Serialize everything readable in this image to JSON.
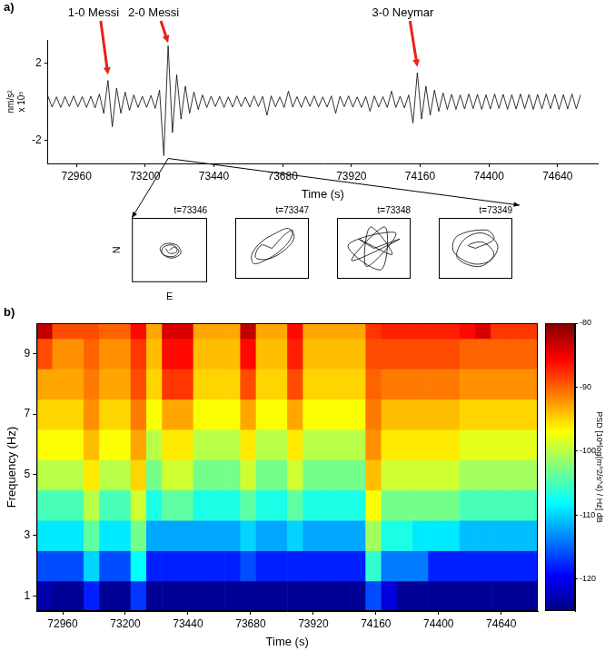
{
  "chart_data": [
    {
      "type": "line",
      "title": "a)",
      "xlabel": "Time (s)",
      "ylabel": [
        "nm/s²",
        "x 10⁵"
      ],
      "color": "#000000",
      "xlim": [
        72860,
        74780
      ],
      "xticks": [
        72960,
        73200,
        73440,
        73680,
        73920,
        74160,
        74400,
        74640
      ],
      "ylim": [
        -3.2,
        3.2
      ],
      "yticks": [
        -2,
        2
      ],
      "x": [
        72860,
        72875,
        72890,
        72905,
        72920,
        72935,
        72950,
        72965,
        72980,
        72995,
        73010,
        73025,
        73040,
        73055,
        73070,
        73085,
        73100,
        73115,
        73130,
        73145,
        73160,
        73175,
        73190,
        73205,
        73220,
        73235,
        73250,
        73265,
        73280,
        73295,
        73310,
        73325,
        73340,
        73355,
        73370,
        73385,
        73400,
        73415,
        73430,
        73445,
        73460,
        73475,
        73490,
        73505,
        73520,
        73535,
        73550,
        73565,
        73580,
        73595,
        73610,
        73625,
        73640,
        73655,
        73670,
        73685,
        73700,
        73715,
        73730,
        73745,
        73760,
        73775,
        73790,
        73805,
        73820,
        73835,
        73850,
        73865,
        73880,
        73895,
        73910,
        73925,
        73940,
        73955,
        73970,
        73985,
        74000,
        74015,
        74030,
        74045,
        74060,
        74075,
        74090,
        74105,
        74120,
        74135,
        74150,
        74165,
        74180,
        74195,
        74210,
        74225,
        74240,
        74255,
        74270,
        74285,
        74300,
        74315,
        74330,
        74345,
        74360,
        74375,
        74390,
        74405,
        74420,
        74435,
        74450,
        74465,
        74480,
        74495,
        74510,
        74525,
        74540,
        74555,
        74570,
        74585,
        74600,
        74615,
        74630,
        74645,
        74660,
        74675,
        74690,
        74705,
        74720
      ],
      "values": [
        0.3,
        -0.28,
        0.25,
        -0.3,
        0.27,
        -0.25,
        0.3,
        -0.27,
        0.26,
        -0.3,
        0.28,
        -0.32,
        0.4,
        -0.6,
        1.1,
        -1.3,
        0.7,
        -0.6,
        0.5,
        -0.45,
        0.35,
        -0.3,
        0.28,
        -0.3,
        0.32,
        -0.35,
        0.6,
        -2.8,
        2.9,
        -1.6,
        1.4,
        -0.9,
        0.8,
        -0.6,
        0.5,
        -0.4,
        0.35,
        -0.3,
        0.28,
        -0.25,
        0.27,
        -0.3,
        0.25,
        -0.28,
        0.3,
        -0.26,
        0.24,
        -0.28,
        0.3,
        -0.25,
        0.27,
        -0.7,
        0.3,
        -0.27,
        0.25,
        -0.3,
        0.55,
        -0.28,
        0.26,
        -0.3,
        0.28,
        -0.25,
        0.3,
        -0.27,
        0.25,
        -0.28,
        0.3,
        -0.6,
        0.28,
        -0.26,
        0.3,
        -0.28,
        0.25,
        -0.3,
        0.27,
        -0.5,
        0.3,
        -0.28,
        0.26,
        -0.3,
        0.55,
        -0.3,
        0.28,
        -0.32,
        0.35,
        -1.1,
        1.5,
        -0.9,
        0.8,
        -0.7,
        0.6,
        -0.5,
        0.45,
        -0.4,
        0.38,
        -0.4,
        0.35,
        -0.38,
        0.4,
        -0.36,
        0.38,
        -0.4,
        0.36,
        -0.38,
        0.4,
        -0.35,
        0.38,
        -0.4,
        0.36,
        -0.38,
        0.4,
        -0.36,
        0.38,
        -0.4,
        0.37,
        -0.38,
        0.4,
        -0.36,
        0.38,
        -0.4,
        0.36,
        -0.38,
        0.4,
        -0.37,
        0.35
      ],
      "annotations": [
        {
          "text": "1-0 Messi",
          "x": 73070,
          "y": 1.4,
          "color": "#e8221b"
        },
        {
          "text": "2-0 Messi",
          "x": 73280,
          "y": 3.05,
          "color": "#e8221b"
        },
        {
          "text": "3-0 Neymar",
          "x": 74150,
          "y": 1.8,
          "color": "#e8221b"
        }
      ]
    },
    {
      "type": "line",
      "title": "t=73346",
      "xlabel": "E",
      "ylabel": "N",
      "color": "#000000",
      "tick_labels": false,
      "xlim": [
        -1,
        1
      ],
      "ylim": [
        -1,
        1
      ],
      "x": [
        0,
        0.15,
        0.25,
        0.1,
        -0.15,
        -0.25,
        -0.1,
        0.2,
        0.3,
        0.05,
        -0.2,
        -0.15,
        0.1,
        0.2,
        0,
        -0.1
      ],
      "values": [
        0,
        0.1,
        -0.05,
        -0.2,
        -0.15,
        0.05,
        0.2,
        0.15,
        -0.1,
        -0.25,
        -0.1,
        0.1,
        0.15,
        -0.05,
        -0.1,
        0.05
      ]
    },
    {
      "type": "line",
      "title": "t=73347",
      "color": "#000000",
      "tick_labels": false,
      "xlim": [
        -1,
        1
      ],
      "ylim": [
        -1,
        1
      ],
      "x": [
        0,
        0.3,
        0.55,
        0.5,
        0.2,
        -0.2,
        -0.5,
        -0.55,
        -0.3,
        0.1,
        0.45,
        0.6,
        0.35,
        -0.1,
        -0.45,
        -0.3,
        0
      ],
      "values": [
        0,
        0.4,
        0.6,
        0.3,
        -0.1,
        -0.4,
        -0.5,
        -0.2,
        0.2,
        0.5,
        0.65,
        0.35,
        -0.05,
        -0.35,
        -0.3,
        0.1,
        0
      ]
    },
    {
      "type": "line",
      "title": "t=73348",
      "color": "#000000",
      "tick_labels": false,
      "xlim": [
        -1,
        1
      ],
      "ylim": [
        -1,
        1
      ],
      "x": [
        0,
        0.7,
        -0.6,
        0.3,
        0.2,
        -0.7,
        0.6,
        -0.2,
        -0.1,
        0.5,
        -0.4,
        0
      ],
      "values": [
        0,
        0.3,
        -0.4,
        0.7,
        -0.7,
        0.1,
        0.5,
        -0.6,
        0.7,
        -0.2,
        0.3,
        0
      ]
    },
    {
      "type": "line",
      "title": "t=73349",
      "color": "#000000",
      "tick_labels": false,
      "xlim": [
        -1,
        1
      ],
      "ylim": [
        -1,
        1
      ],
      "x": [
        0,
        0.5,
        0.3,
        -0.5,
        -0.6,
        -0.1,
        0.4,
        0.6,
        0.2,
        -0.3,
        -0.5,
        0.1,
        0.5,
        0.2,
        -0.2,
        0
      ],
      "values": [
        0,
        0.3,
        0.6,
        0.4,
        -0.1,
        -0.5,
        -0.4,
        0.1,
        0.5,
        0.3,
        -0.3,
        -0.6,
        -0.2,
        0.2,
        0.1,
        0
      ]
    },
    {
      "type": "heatmap",
      "title": "b)",
      "xlabel": "Time (s)",
      "ylabel": "Frequency (Hz)",
      "xlim": [
        72860,
        74780
      ],
      "xticks": [
        72960,
        73200,
        73440,
        73680,
        73920,
        74160,
        74400,
        74640
      ],
      "ylim": [
        0.5,
        10
      ],
      "yticks": [
        1,
        3,
        5,
        7,
        9
      ],
      "x_edges": [
        72860,
        72920,
        72980,
        73040,
        73100,
        73160,
        73220,
        73280,
        73340,
        73400,
        73460,
        73520,
        73580,
        73640,
        73700,
        73760,
        73820,
        73880,
        73940,
        74000,
        74060,
        74120,
        74180,
        74240,
        74300,
        74360,
        74420,
        74480,
        74540,
        74600,
        74660,
        74720,
        74780
      ],
      "y_edges": [
        0.5,
        1.5,
        2.5,
        3.5,
        4.5,
        5.5,
        6.5,
        7.5,
        8.5,
        9.5,
        10
      ],
      "cells": [
        [
          -123,
          -124,
          -124,
          -118,
          -124,
          -124,
          -117,
          -124,
          -124,
          -124,
          -124,
          -124,
          -124,
          -124,
          -124,
          -124,
          -124,
          -124,
          -124,
          -124,
          -124,
          -116,
          -121,
          -124,
          -124,
          -124,
          -124,
          -124,
          -124,
          -124,
          -124,
          -124
        ],
        [
          -116,
          -116,
          -116,
          -110,
          -116,
          -116,
          -108,
          -118,
          -118,
          -118,
          -118,
          -118,
          -118,
          -116,
          -118,
          -118,
          -118,
          -118,
          -118,
          -118,
          -118,
          -106,
          -114,
          -114,
          -114,
          -118,
          -118,
          -118,
          -118,
          -118,
          -118,
          -118
        ],
        [
          -109,
          -109,
          -109,
          -104,
          -109,
          -109,
          -103,
          -112,
          -112,
          -112,
          -112,
          -112,
          -112,
          -110,
          -112,
          -112,
          -110,
          -112,
          -112,
          -112,
          -112,
          -101,
          -107,
          -107,
          -109,
          -109,
          -109,
          -111,
          -111,
          -111,
          -111,
          -111
        ],
        [
          -105,
          -105,
          -105,
          -100,
          -105,
          -105,
          -99,
          -107,
          -104,
          -104,
          -107,
          -107,
          -107,
          -104,
          -107,
          -107,
          -104,
          -107,
          -107,
          -107,
          -107,
          -97,
          -103,
          -103,
          -103,
          -103,
          -103,
          -105,
          -105,
          -105,
          -105,
          -105
        ],
        [
          -100,
          -100,
          -100,
          -96,
          -100,
          -100,
          -95,
          -103,
          -99,
          -99,
          -103,
          -103,
          -103,
          -99,
          -103,
          -103,
          -99,
          -103,
          -103,
          -103,
          -103,
          -94,
          -99,
          -99,
          -99,
          -99,
          -99,
          -101,
          -101,
          -101,
          -101,
          -101
        ],
        [
          -97,
          -97,
          -97,
          -94,
          -97,
          -97,
          -93,
          -100,
          -96,
          -96,
          -100,
          -100,
          -100,
          -96,
          -100,
          -100,
          -96,
          -100,
          -100,
          -100,
          -100,
          -92,
          -96,
          -96,
          -96,
          -96,
          -96,
          -98,
          -98,
          -98,
          -98,
          -98
        ],
        [
          -95,
          -95,
          -95,
          -92,
          -95,
          -95,
          -91,
          -97,
          -93,
          -93,
          -97,
          -97,
          -97,
          -93,
          -97,
          -97,
          -93,
          -97,
          -97,
          -97,
          -97,
          -91,
          -94,
          -94,
          -94,
          -94,
          -94,
          -95,
          -95,
          -95,
          -95,
          -95
        ],
        [
          -93,
          -93,
          -93,
          -91,
          -93,
          -93,
          -89,
          -95,
          -88,
          -88,
          -95,
          -95,
          -95,
          -89,
          -95,
          -95,
          -89,
          -95,
          -95,
          -95,
          -95,
          -90,
          -91,
          -91,
          -91,
          -91,
          -91,
          -92,
          -92,
          -92,
          -92,
          -92
        ],
        [
          -89,
          -92,
          -92,
          -90,
          -92,
          -92,
          -88,
          -94,
          -86,
          -86,
          -94,
          -94,
          -94,
          -86,
          -94,
          -94,
          -87,
          -94,
          -94,
          -94,
          -94,
          -89,
          -89,
          -89,
          -89,
          -89,
          -89,
          -90,
          -90,
          -90,
          -90,
          -90
        ],
        [
          -83,
          -89,
          -89,
          -89,
          -90,
          -90,
          -86,
          -93,
          -84,
          -84,
          -93,
          -93,
          -93,
          -83,
          -93,
          -93,
          -86,
          -93,
          -93,
          -93,
          -93,
          -88,
          -87,
          -87,
          -87,
          -87,
          -87,
          -86,
          -84,
          -88,
          -88,
          -88
        ]
      ],
      "colorbar": {
        "label": "PSD [10*log(m^2/s^4) / Hz] dB",
        "range": [
          -125,
          -80
        ],
        "ticks": [
          -120,
          -110,
          -100,
          -90,
          -80
        ]
      }
    }
  ]
}
